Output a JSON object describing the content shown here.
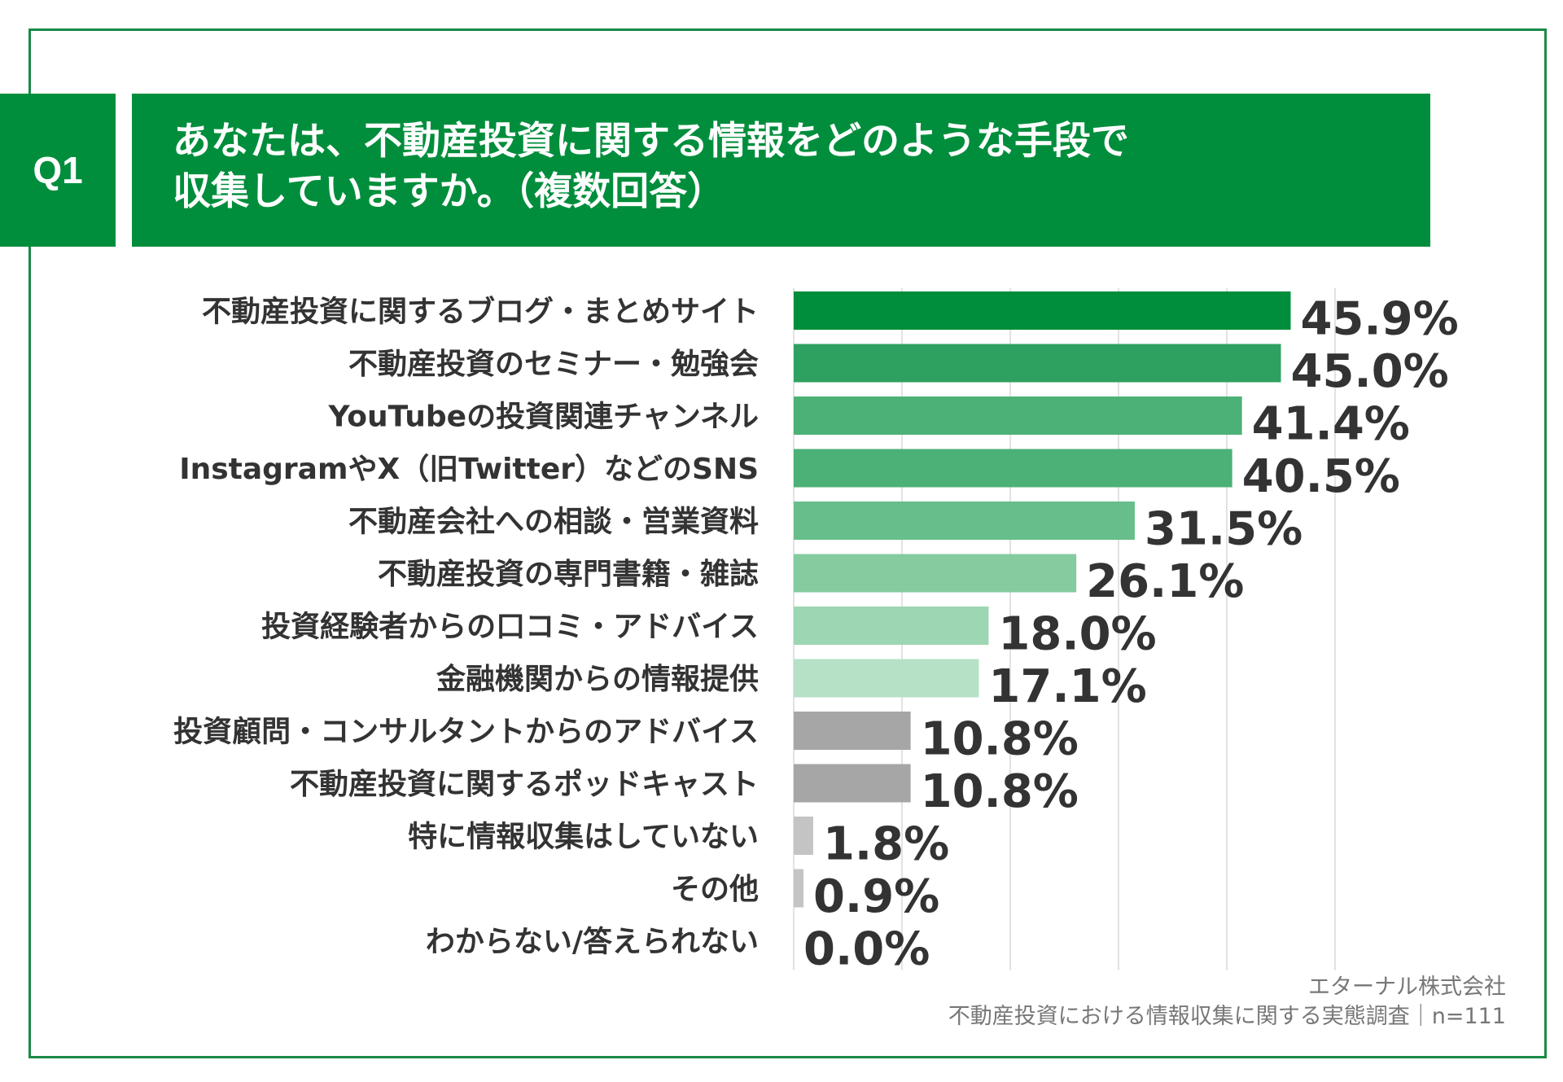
{
  "question": {
    "badge": "Q1",
    "line1": "あなたは、不動産投資に関する情報をどのような手段で",
    "line2": "収集していますか。（複数回答）"
  },
  "footer": {
    "company": "エターナル株式会社",
    "survey": "不動産投資における情報収集に関する実態調査｜n=111"
  },
  "colors": {
    "header": "#008e3c",
    "frame": "#1a8a45",
    "text": "#333333",
    "grid": "#d9d9d9"
  },
  "chart_data": {
    "type": "bar",
    "orientation": "horizontal",
    "title": "あなたは、不動産投資に関する情報をどのような手段で収集していますか。（複数回答）",
    "xlim": [
      0,
      50
    ],
    "grid": true,
    "unit": "%",
    "categories": [
      "不動産投資に関するブログ・まとめサイト",
      "不動産投資のセミナー・勉強会",
      "YouTubeの投資関連チャンネル",
      "InstagramやX（旧Twitter）などのSNS",
      "不動産会社への相談・営業資料",
      "不動産投資の専門書籍・雑誌",
      "投資経験者からの口コミ・アドバイス",
      "金融機関からの情報提供",
      "投資顧問・コンサルタントからのアドバイス",
      "不動産投資に関するポッドキャスト",
      "特に情報収集はしていない",
      "その他",
      "わからない/答えられない"
    ],
    "values": [
      45.9,
      45.0,
      41.4,
      40.5,
      31.5,
      26.1,
      18.0,
      17.1,
      10.8,
      10.8,
      1.8,
      0.9,
      0.0
    ],
    "value_labels": [
      "45.9%",
      "45.0%",
      "41.4%",
      "40.5%",
      "31.5%",
      "26.1%",
      "18.0%",
      "17.1%",
      "10.8%",
      "10.8%",
      "1.8%",
      "0.9%",
      "0.0%"
    ],
    "bar_colors": [
      "#008e3c",
      "#2ea160",
      "#4cb176",
      "#4cb176",
      "#67be8b",
      "#84cba0",
      "#9dd6b3",
      "#b6e1c7",
      "#a6a6a6",
      "#a6a6a6",
      "#c4c4c4",
      "#c4c4c4",
      "#c4c4c4"
    ]
  }
}
